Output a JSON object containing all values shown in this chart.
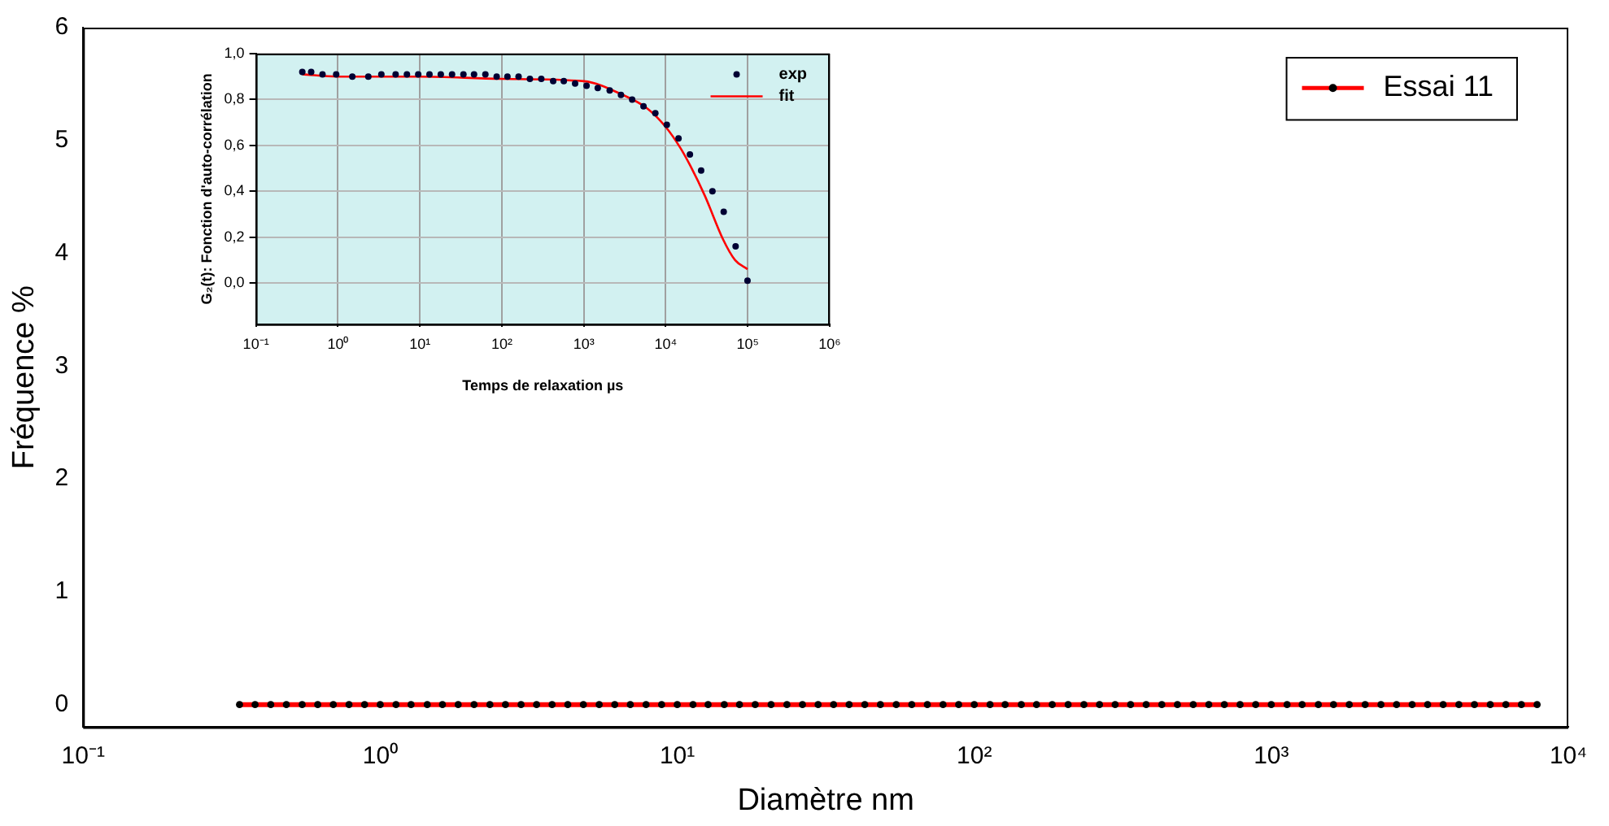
{
  "chart_data": [
    {
      "type": "line",
      "xlabel": "Diamètre nm",
      "ylabel": "Fréquence %",
      "log": "x",
      "marker": "circle",
      "legend": "top right",
      "grid": false,
      "xlim": [
        0.1,
        10000
      ],
      "xticks": [
        {
          "value": 0.1,
          "label": "10⁻¹"
        },
        {
          "value": 1,
          "label": "10⁰"
        },
        {
          "value": 10,
          "label": "10¹"
        },
        {
          "value": 100,
          "label": "10²"
        },
        {
          "value": 1000,
          "label": "10³"
        },
        {
          "value": 10000,
          "label": "10⁴"
        }
      ],
      "ylim": [
        -0.2,
        6
      ],
      "yticks": [
        0,
        1,
        2,
        3,
        4,
        5,
        6
      ],
      "x": [
        0.336,
        0.379,
        0.428,
        0.483,
        0.546,
        0.616,
        0.695,
        0.785,
        0.886,
        1,
        1.13,
        1.27,
        1.44,
        1.62,
        1.83,
        2.07,
        2.34,
        2.64,
        2.98,
        3.36,
        3.79,
        4.28,
        4.83,
        5.46,
        6.16,
        6.95,
        7.85,
        8.86,
        10,
        11.3,
        12.7,
        14.4,
        16.2,
        18.3,
        20.7,
        23.4,
        26.4,
        29.8,
        33.6,
        37.9,
        42.8,
        48.3,
        54.6,
        61.6,
        69.5,
        78.5,
        88.6,
        100,
        113,
        127,
        144,
        162,
        183,
        207,
        234,
        264,
        298,
        336,
        379,
        428,
        483,
        546,
        616,
        695,
        785,
        886,
        1000,
        1130,
        1270,
        1440,
        1620,
        1830,
        2070,
        2340,
        2640,
        2980,
        3360,
        3790,
        4280,
        4830,
        5460,
        6160,
        6950,
        7850
      ],
      "series": [
        {
          "name": "Essai 11",
          "color": "#ff0000",
          "values": [
            0,
            0,
            0,
            0,
            0,
            0,
            0,
            0,
            0,
            0,
            0,
            0,
            0,
            0,
            0,
            0,
            0,
            0,
            0,
            0,
            0,
            0,
            0,
            0,
            0,
            0,
            0,
            0,
            0,
            0,
            0,
            0,
            0,
            0,
            0,
            0,
            0,
            0,
            0,
            0,
            0,
            0,
            0,
            0,
            0,
            0,
            0,
            0,
            0,
            0,
            0,
            0,
            0,
            0,
            0,
            0,
            0,
            0,
            0,
            0,
            0,
            0,
            0,
            0,
            0,
            0,
            0,
            0,
            0,
            0,
            0,
            0,
            0,
            0,
            0,
            0,
            0,
            0,
            0,
            0,
            0,
            0,
            0,
            0
          ]
        }
      ]
    },
    {
      "type": "scatter",
      "xlabel": "Temps de relaxation µs",
      "ylabel": "G₂(t): Fonction d'auto-corrélation",
      "log": "x",
      "legend": "top right",
      "grid": true,
      "xlim": [
        0.1,
        1000000
      ],
      "xticks": [
        {
          "value": 0.1,
          "label": "10⁻¹"
        },
        {
          "value": 1,
          "label": "10⁰"
        },
        {
          "value": 10,
          "label": "10¹"
        },
        {
          "value": 100,
          "label": "10²"
        },
        {
          "value": 1000,
          "label": "10³"
        },
        {
          "value": 10000,
          "label": "10⁴"
        },
        {
          "value": 100000,
          "label": "10⁵"
        },
        {
          "value": 1000000,
          "label": "10⁶"
        }
      ],
      "ylim": [
        -0.18,
        1
      ],
      "yticks": [
        {
          "value": 0,
          "label": "0,0"
        },
        {
          "value": 0.2,
          "label": "0,2"
        },
        {
          "value": 0.4,
          "label": "0,4"
        },
        {
          "value": 0.6,
          "label": "0,6"
        },
        {
          "value": 0.8,
          "label": "0,8"
        },
        {
          "value": 1,
          "label": "1,0"
        }
      ],
      "series": [
        {
          "name": "exp",
          "type": "scatter",
          "marker": "circle",
          "color": "#000033",
          "x": [
            0.368,
            0.472,
            0.649,
            0.953,
            1.5,
            2.35,
            3.39,
            5.06,
            6.95,
            9.55,
            13.1,
            18,
            24.7,
            34,
            45.8,
            63,
            86.5,
            117,
            160,
            220,
            303,
            423,
            570,
            783,
            1080,
            1480,
            2070,
            2840,
            3890,
            5350,
            7460,
            10300,
            14300,
            19700,
            27000,
            37100,
            50900,
            71100,
            99300
          ],
          "values": [
            0.92,
            0.92,
            0.91,
            0.91,
            0.9,
            0.9,
            0.91,
            0.91,
            0.91,
            0.91,
            0.91,
            0.91,
            0.91,
            0.91,
            0.91,
            0.91,
            0.9,
            0.9,
            0.9,
            0.89,
            0.89,
            0.88,
            0.88,
            0.87,
            0.86,
            0.85,
            0.84,
            0.82,
            0.8,
            0.77,
            0.74,
            0.69,
            0.63,
            0.56,
            0.49,
            0.4,
            0.31,
            0.16,
            0.01
          ]
        },
        {
          "name": "fit",
          "type": "line",
          "marker": "none",
          "color": "#ff0000",
          "x": [
            0.368,
            1,
            10,
            100,
            1000,
            3000,
            6000,
            10000,
            15000,
            20000,
            30000,
            50000,
            70000,
            99300
          ],
          "values": [
            0.91,
            0.9,
            0.9,
            0.89,
            0.88,
            0.82,
            0.76,
            0.68,
            0.59,
            0.51,
            0.38,
            0.19,
            0.1,
            0.06
          ]
        }
      ]
    }
  ]
}
